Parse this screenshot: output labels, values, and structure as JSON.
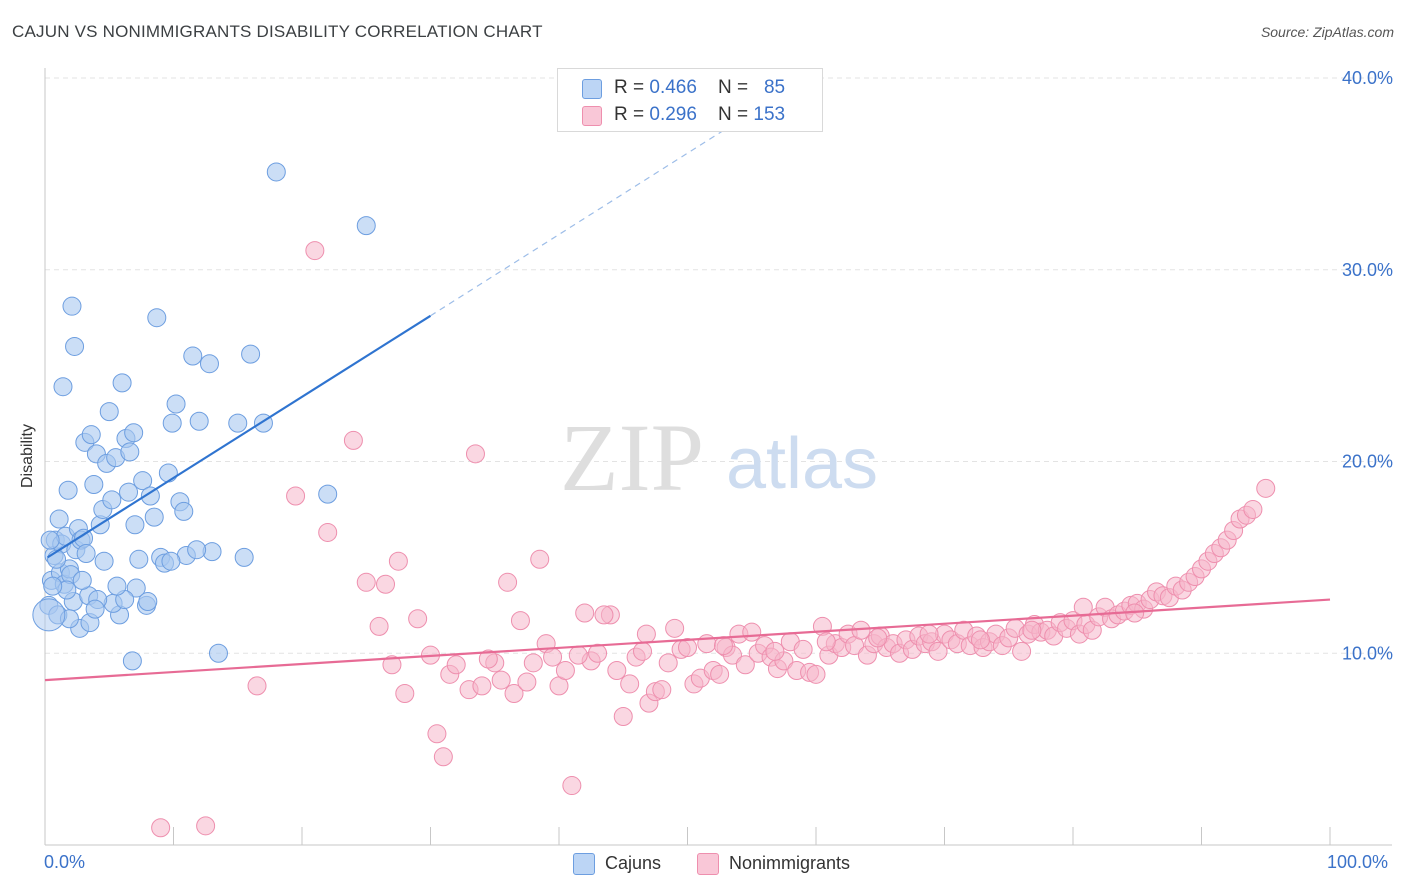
{
  "title": "CAJUN VS NONIMMIGRANTS DISABILITY CORRELATION CHART",
  "source": "Source: ZipAtlas.com",
  "watermark": {
    "zip": "ZIP",
    "atlas": "atlas"
  },
  "legend": {
    "rows": [
      {
        "r_label": "R = ",
        "r_value": "0.466",
        "n_label": "N = ",
        "n_value": "85"
      },
      {
        "r_label": "R = ",
        "r_value": "0.296",
        "n_label": "N = ",
        "n_value": "153"
      }
    ],
    "bottom": [
      {
        "label": "Cajuns"
      },
      {
        "label": "Nonimmigrants"
      }
    ]
  },
  "colors": {
    "cajun_fill": "#a9c8f0",
    "cajun_stroke": "#6d9ee0",
    "cajun_line": "#2f74d0",
    "nonimm_fill": "#f6b7cb",
    "nonimm_stroke": "#ee8fae",
    "nonimm_line": "#e76b95",
    "axis_text": "#3b72c9",
    "grid": "#e3e3e3"
  },
  "chart_data": {
    "type": "scatter",
    "title": "CAJUN VS NONIMMIGRANTS DISABILITY CORRELATION CHART",
    "xlabel": "",
    "ylabel": "Disability",
    "xlim": [
      0,
      100
    ],
    "ylim": [
      0,
      40
    ],
    "x_tick_labels": [
      "0.0%",
      "100.0%"
    ],
    "y_tick_labels": [
      "10.0%",
      "20.0%",
      "30.0%",
      "40.0%"
    ],
    "y_ticks": [
      10,
      20,
      30,
      40
    ],
    "grid": true,
    "legend_position": "top-center",
    "series": [
      {
        "name": "Cajuns",
        "R": 0.466,
        "N": 85,
        "trend": {
          "x0": 0.2,
          "y0": 15.0,
          "x1": 30.0,
          "y1": 27.6,
          "dash_to_x": 55.0,
          "dash_to_y": 38.2
        },
        "points": [
          [
            0.3,
            12.5
          ],
          [
            0.5,
            13.8
          ],
          [
            0.7,
            15.1
          ],
          [
            0.8,
            15.9
          ],
          [
            1.0,
            12.0
          ],
          [
            1.1,
            17.0
          ],
          [
            1.2,
            14.2
          ],
          [
            1.3,
            15.7
          ],
          [
            1.5,
            13.6
          ],
          [
            1.6,
            16.1
          ],
          [
            1.8,
            18.5
          ],
          [
            1.9,
            14.4
          ],
          [
            2.0,
            14.1
          ],
          [
            2.2,
            12.7
          ],
          [
            2.4,
            15.4
          ],
          [
            2.6,
            16.5
          ],
          [
            2.8,
            15.9
          ],
          [
            3.0,
            16.0
          ],
          [
            3.1,
            21.0
          ],
          [
            3.2,
            15.2
          ],
          [
            3.4,
            13.0
          ],
          [
            3.6,
            21.4
          ],
          [
            3.8,
            18.8
          ],
          [
            4.0,
            20.4
          ],
          [
            4.3,
            16.7
          ],
          [
            4.5,
            17.5
          ],
          [
            4.8,
            19.9
          ],
          [
            5.0,
            22.6
          ],
          [
            5.2,
            18.0
          ],
          [
            5.5,
            20.2
          ],
          [
            5.8,
            12.0
          ],
          [
            6.0,
            24.1
          ],
          [
            6.3,
            21.2
          ],
          [
            6.6,
            20.5
          ],
          [
            6.9,
            21.5
          ],
          [
            7.1,
            13.4
          ],
          [
            7.3,
            14.9
          ],
          [
            7.6,
            19.0
          ],
          [
            7.9,
            12.5
          ],
          [
            8.2,
            18.2
          ],
          [
            8.5,
            17.1
          ],
          [
            8.7,
            27.5
          ],
          [
            9.0,
            15.0
          ],
          [
            9.3,
            14.7
          ],
          [
            9.6,
            19.4
          ],
          [
            9.9,
            22.0
          ],
          [
            10.2,
            23.0
          ],
          [
            10.5,
            17.9
          ],
          [
            11.0,
            15.1
          ],
          [
            11.5,
            25.5
          ],
          [
            12.0,
            22.1
          ],
          [
            13.0,
            15.3
          ],
          [
            13.5,
            10.0
          ],
          [
            15.0,
            22.0
          ],
          [
            15.5,
            15.0
          ],
          [
            16.0,
            25.6
          ],
          [
            17.0,
            22.0
          ],
          [
            18.0,
            35.1
          ],
          [
            22.0,
            18.3
          ],
          [
            25.0,
            32.3
          ],
          [
            2.1,
            28.1
          ],
          [
            2.3,
            26.0
          ],
          [
            1.4,
            23.9
          ],
          [
            0.9,
            14.9
          ],
          [
            2.7,
            11.3
          ],
          [
            3.5,
            11.6
          ],
          [
            5.3,
            12.6
          ],
          [
            6.2,
            12.8
          ],
          [
            6.8,
            9.6
          ],
          [
            4.1,
            12.8
          ],
          [
            0.4,
            15.9
          ],
          [
            1.7,
            13.3
          ],
          [
            2.9,
            13.8
          ],
          [
            4.6,
            14.8
          ],
          [
            5.6,
            13.5
          ],
          [
            7.0,
            16.7
          ],
          [
            8.0,
            12.7
          ],
          [
            9.8,
            14.8
          ],
          [
            12.8,
            25.1
          ],
          [
            10.8,
            17.4
          ],
          [
            11.8,
            15.4
          ],
          [
            0.6,
            13.5
          ],
          [
            1.9,
            11.8
          ],
          [
            3.9,
            12.3
          ],
          [
            6.5,
            18.4
          ]
        ]
      },
      {
        "name": "Nonimmigrants",
        "R": 0.296,
        "N": 153,
        "trend": {
          "x0": 0,
          "y0": 8.6,
          "x1": 100,
          "y1": 12.8
        },
        "points": [
          [
            9.0,
            0.9
          ],
          [
            12.5,
            1.0
          ],
          [
            16.5,
            8.3
          ],
          [
            19.5,
            18.2
          ],
          [
            21.0,
            31.0
          ],
          [
            22.0,
            16.3
          ],
          [
            24.0,
            21.1
          ],
          [
            25.0,
            13.7
          ],
          [
            26.0,
            11.4
          ],
          [
            26.5,
            13.6
          ],
          [
            27.0,
            9.4
          ],
          [
            27.5,
            14.8
          ],
          [
            28.0,
            7.9
          ],
          [
            29.0,
            11.8
          ],
          [
            30.0,
            9.9
          ],
          [
            30.5,
            5.8
          ],
          [
            31.0,
            4.6
          ],
          [
            31.5,
            8.9
          ],
          [
            32.0,
            9.4
          ],
          [
            33.0,
            8.1
          ],
          [
            33.5,
            20.4
          ],
          [
            34.0,
            8.3
          ],
          [
            35.0,
            9.5
          ],
          [
            35.5,
            8.6
          ],
          [
            36.0,
            13.7
          ],
          [
            36.5,
            7.9
          ],
          [
            37.0,
            11.7
          ],
          [
            38.0,
            9.5
          ],
          [
            38.5,
            14.9
          ],
          [
            39.0,
            10.5
          ],
          [
            39.5,
            9.8
          ],
          [
            40.0,
            8.3
          ],
          [
            40.5,
            9.1
          ],
          [
            41.0,
            3.1
          ],
          [
            42.0,
            12.1
          ],
          [
            42.5,
            9.6
          ],
          [
            43.0,
            10.0
          ],
          [
            44.0,
            12.0
          ],
          [
            44.5,
            9.1
          ],
          [
            45.0,
            6.7
          ],
          [
            45.5,
            8.4
          ],
          [
            46.0,
            9.8
          ],
          [
            46.5,
            10.1
          ],
          [
            47.0,
            7.4
          ],
          [
            47.5,
            8.0
          ],
          [
            48.0,
            8.1
          ],
          [
            48.5,
            9.5
          ],
          [
            49.0,
            11.3
          ],
          [
            49.5,
            10.2
          ],
          [
            50.0,
            10.3
          ],
          [
            50.5,
            8.4
          ],
          [
            51.0,
            8.7
          ],
          [
            51.5,
            10.5
          ],
          [
            52.0,
            9.1
          ],
          [
            52.5,
            8.9
          ],
          [
            53.0,
            10.3
          ],
          [
            53.5,
            9.9
          ],
          [
            54.0,
            11.0
          ],
          [
            54.5,
            9.4
          ],
          [
            55.0,
            11.1
          ],
          [
            55.5,
            10.0
          ],
          [
            56.0,
            10.4
          ],
          [
            56.5,
            9.8
          ],
          [
            57.0,
            9.2
          ],
          [
            57.5,
            9.6
          ],
          [
            58.0,
            10.6
          ],
          [
            58.5,
            9.1
          ],
          [
            59.0,
            10.2
          ],
          [
            59.5,
            9.0
          ],
          [
            60.0,
            8.9
          ],
          [
            60.5,
            11.4
          ],
          [
            61.0,
            9.9
          ],
          [
            61.5,
            10.5
          ],
          [
            62.0,
            10.3
          ],
          [
            62.5,
            11.0
          ],
          [
            63.0,
            10.4
          ],
          [
            63.5,
            11.2
          ],
          [
            64.0,
            9.9
          ],
          [
            64.5,
            10.5
          ],
          [
            65.0,
            10.9
          ],
          [
            65.5,
            10.3
          ],
          [
            66.0,
            10.5
          ],
          [
            66.5,
            10.0
          ],
          [
            67.0,
            10.7
          ],
          [
            67.5,
            10.2
          ],
          [
            68.0,
            10.9
          ],
          [
            68.5,
            10.5
          ],
          [
            69.0,
            10.6
          ],
          [
            69.5,
            10.1
          ],
          [
            70.0,
            11.0
          ],
          [
            70.5,
            10.7
          ],
          [
            71.0,
            10.5
          ],
          [
            71.5,
            11.2
          ],
          [
            72.0,
            10.4
          ],
          [
            72.5,
            10.9
          ],
          [
            73.0,
            10.3
          ],
          [
            73.5,
            10.6
          ],
          [
            74.0,
            11.0
          ],
          [
            74.5,
            10.4
          ],
          [
            75.0,
            10.8
          ],
          [
            75.5,
            11.3
          ],
          [
            76.0,
            10.1
          ],
          [
            76.5,
            11.0
          ],
          [
            77.0,
            11.5
          ],
          [
            77.5,
            11.1
          ],
          [
            78.0,
            11.2
          ],
          [
            78.5,
            10.9
          ],
          [
            79.0,
            11.6
          ],
          [
            79.5,
            11.3
          ],
          [
            80.0,
            11.7
          ],
          [
            80.5,
            11.0
          ],
          [
            81.0,
            11.5
          ],
          [
            81.5,
            11.2
          ],
          [
            82.0,
            11.9
          ],
          [
            82.5,
            12.4
          ],
          [
            83.0,
            11.8
          ],
          [
            83.5,
            12.0
          ],
          [
            84.0,
            12.2
          ],
          [
            84.5,
            12.5
          ],
          [
            85.0,
            12.6
          ],
          [
            85.5,
            12.3
          ],
          [
            86.0,
            12.8
          ],
          [
            86.5,
            13.2
          ],
          [
            87.0,
            13.0
          ],
          [
            87.5,
            12.9
          ],
          [
            88.0,
            13.5
          ],
          [
            88.5,
            13.3
          ],
          [
            89.0,
            13.7
          ],
          [
            89.5,
            14.0
          ],
          [
            90.0,
            14.4
          ],
          [
            90.5,
            14.8
          ],
          [
            91.0,
            15.2
          ],
          [
            91.5,
            15.5
          ],
          [
            92.0,
            15.9
          ],
          [
            92.5,
            16.4
          ],
          [
            93.0,
            17.0
          ],
          [
            93.5,
            17.2
          ],
          [
            94.0,
            17.5
          ],
          [
            95.0,
            18.6
          ],
          [
            34.5,
            9.7
          ],
          [
            37.5,
            8.5
          ],
          [
            41.5,
            9.9
          ],
          [
            43.5,
            12.0
          ],
          [
            46.8,
            11.0
          ],
          [
            52.8,
            10.4
          ],
          [
            56.8,
            10.1
          ],
          [
            60.8,
            10.6
          ],
          [
            64.8,
            10.8
          ],
          [
            68.8,
            11.0
          ],
          [
            72.8,
            10.7
          ],
          [
            76.8,
            11.2
          ],
          [
            80.8,
            12.4
          ],
          [
            84.8,
            12.1
          ]
        ]
      }
    ]
  }
}
